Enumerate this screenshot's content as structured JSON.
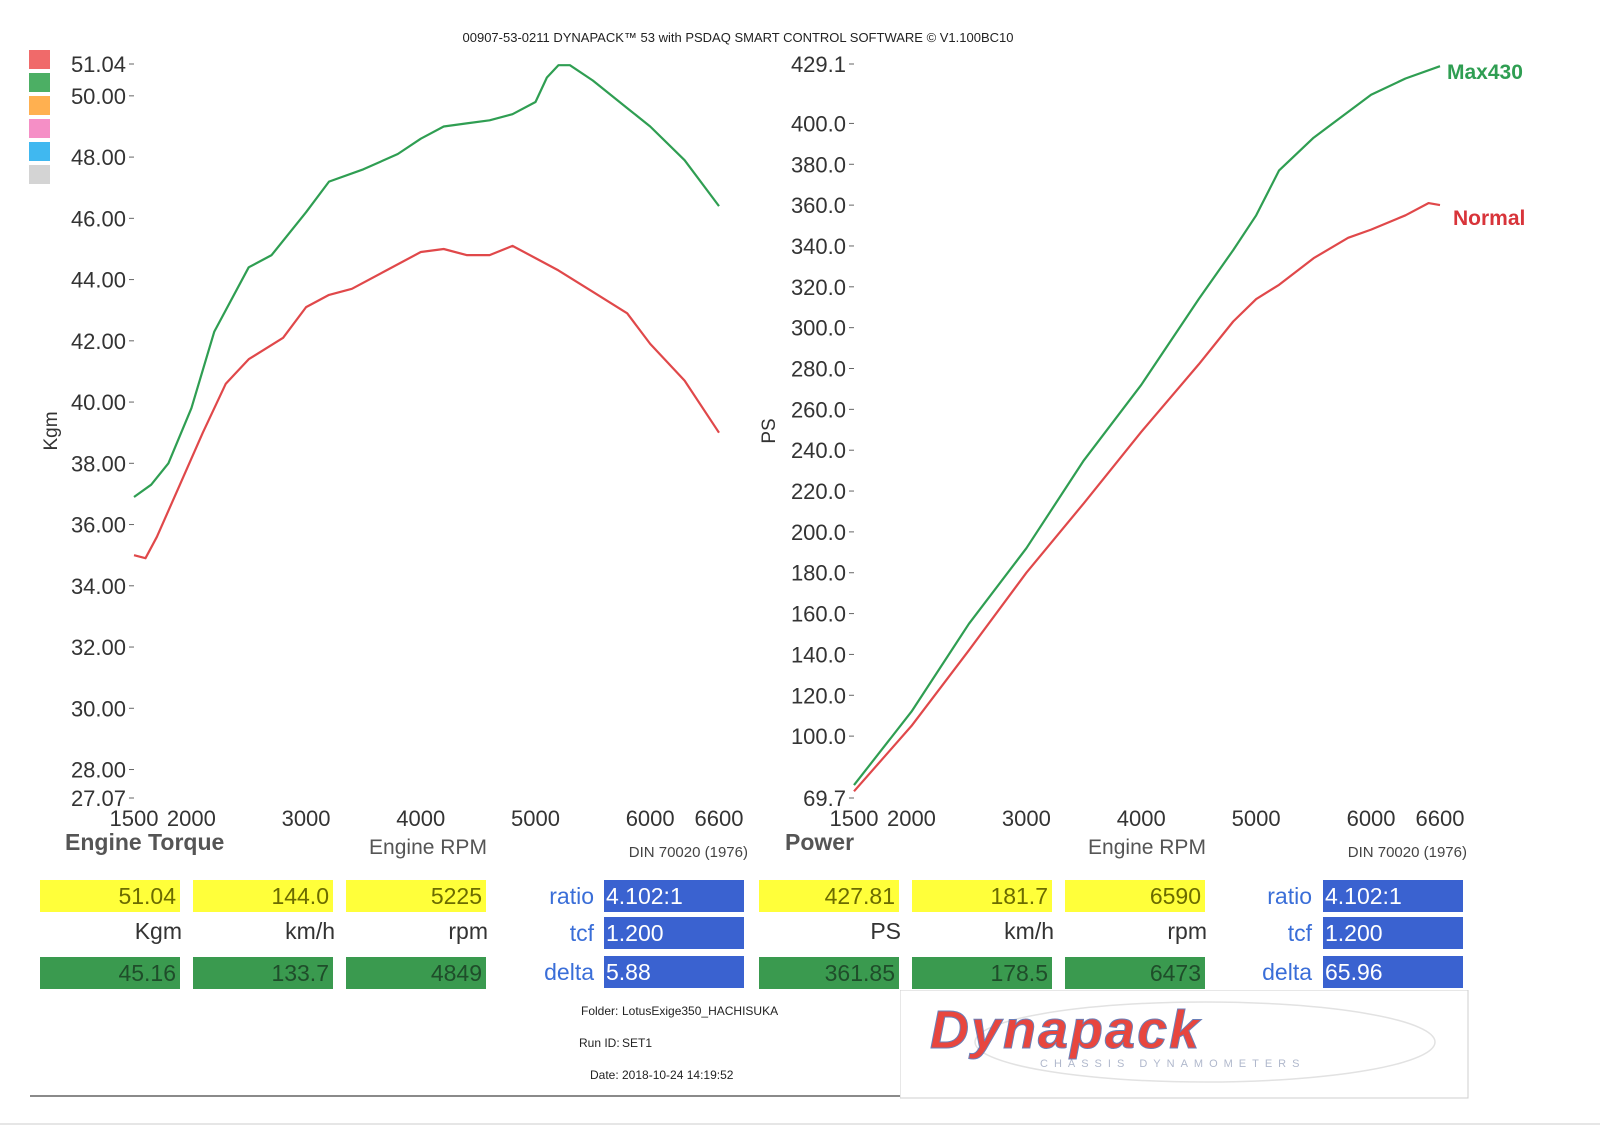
{
  "header": {
    "title": "00907-53-0211 DYNAPACK™ 53 with PSDAQ SMART CONTROL SOFTWARE © V1.100BC10"
  },
  "colors": {
    "green": "#2f9e52",
    "red": "#e0484a",
    "swatches": [
      "#f06a6a",
      "#4caf64",
      "#ffb050",
      "#f58fc6",
      "#40b8f0",
      "#d4d4d4"
    ]
  },
  "chart_data": [
    {
      "type": "line",
      "title": "Engine Torque",
      "xlabel": "Engine RPM",
      "ylabel": "Kgm",
      "standard": "DIN 70020 (1976)",
      "xlim": [
        1500,
        6600
      ],
      "ylim": [
        27.07,
        51.04
      ],
      "x_ticks": [
        "1500",
        "2000",
        "3000",
        "4000",
        "5000",
        "6000",
        "6600"
      ],
      "y_ticks": [
        "27.07",
        "28.00",
        "30.00",
        "32.00",
        "34.00",
        "36.00",
        "38.00",
        "40.00",
        "42.00",
        "44.00",
        "46.00",
        "48.00",
        "50.00",
        "51.04"
      ],
      "series": [
        {
          "name": "Max430",
          "color": "#2f9e52",
          "x": [
            1500,
            1650,
            1800,
            2000,
            2200,
            2500,
            2700,
            3000,
            3200,
            3500,
            3800,
            4000,
            4200,
            4400,
            4600,
            4800,
            5000,
            5100,
            5200,
            5300,
            5500,
            5800,
            6000,
            6300,
            6600
          ],
          "y": [
            36.9,
            37.3,
            38.0,
            39.8,
            42.3,
            44.4,
            44.8,
            46.2,
            47.2,
            47.6,
            48.1,
            48.6,
            49.0,
            49.1,
            49.2,
            49.4,
            49.8,
            50.6,
            51.0,
            51.0,
            50.5,
            49.6,
            49.0,
            47.9,
            46.4
          ]
        },
        {
          "name": "Normal",
          "color": "#e0484a",
          "x": [
            1500,
            1600,
            1700,
            1900,
            2100,
            2300,
            2500,
            2800,
            3000,
            3200,
            3400,
            3700,
            4000,
            4200,
            4400,
            4600,
            4800,
            5000,
            5200,
            5500,
            5800,
            6000,
            6300,
            6600
          ],
          "y": [
            35.0,
            34.9,
            35.6,
            37.3,
            39.0,
            40.6,
            41.4,
            42.1,
            43.1,
            43.5,
            43.7,
            44.3,
            44.9,
            45.0,
            44.8,
            44.8,
            45.1,
            44.7,
            44.3,
            43.6,
            42.9,
            41.9,
            40.7,
            39.0
          ]
        }
      ]
    },
    {
      "type": "line",
      "title": "Power",
      "xlabel": "Engine RPM",
      "ylabel": "PS",
      "standard": "DIN 70020 (1976)",
      "xlim": [
        1500,
        6600
      ],
      "ylim": [
        69.7,
        429.1
      ],
      "x_ticks": [
        "1500",
        "2000",
        "3000",
        "4000",
        "5000",
        "6000",
        "6600"
      ],
      "y_ticks": [
        "69.7",
        "100.0",
        "120.0",
        "140.0",
        "160.0",
        "180.0",
        "200.0",
        "220.0",
        "240.0",
        "260.0",
        "280.0",
        "300.0",
        "320.0",
        "340.0",
        "360.0",
        "380.0",
        "400.0",
        "429.1"
      ],
      "legend": [
        "Max430",
        "Normal"
      ],
      "series": [
        {
          "name": "Max430",
          "color": "#2f9e52",
          "x": [
            1500,
            2000,
            2500,
            3000,
            3500,
            4000,
            4500,
            4800,
            5000,
            5200,
            5500,
            6000,
            6300,
            6600
          ],
          "y": [
            76,
            112,
            155,
            192,
            235,
            272,
            314,
            338,
            355,
            377,
            393,
            414,
            422,
            428
          ]
        },
        {
          "name": "Normal",
          "color": "#e0484a",
          "x": [
            1500,
            2000,
            2500,
            3000,
            3500,
            4000,
            4500,
            4800,
            5000,
            5200,
            5500,
            5800,
            6000,
            6300,
            6500,
            6600
          ],
          "y": [
            73,
            105,
            142,
            180,
            214,
            249,
            282,
            303,
            314,
            321,
            334,
            344,
            348,
            355,
            361,
            360
          ]
        }
      ]
    }
  ],
  "readouts": {
    "torque": {
      "max": [
        "51.04",
        "144.0",
        "5225"
      ],
      "units": [
        "Kgm",
        "km/h",
        "rpm"
      ],
      "normal": [
        "45.16",
        "133.7",
        "4849"
      ],
      "params": [
        {
          "label": "ratio",
          "value": "4.102:1"
        },
        {
          "label": "tcf",
          "value": "1.200"
        },
        {
          "label": "delta",
          "value": "5.88"
        }
      ]
    },
    "power": {
      "max": [
        "427.81",
        "181.7",
        "6590"
      ],
      "units": [
        "PS",
        "km/h",
        "rpm"
      ],
      "normal": [
        "361.85",
        "178.5",
        "6473"
      ],
      "params": [
        {
          "label": "ratio",
          "value": "4.102:1"
        },
        {
          "label": "tcf",
          "value": "1.200"
        },
        {
          "label": "delta",
          "value": "65.96"
        }
      ]
    }
  },
  "footer": {
    "folder_label": "Folder:",
    "folder": "LotusExige350_HACHISUKA",
    "run_label": "Run ID:",
    "run": "SET1",
    "date_label": "Date:",
    "date": "2018-10-24 14:19:52"
  },
  "logo": {
    "text": "Dynapack",
    "subtitle": "CHASSIS DYNAMOMETERS"
  }
}
